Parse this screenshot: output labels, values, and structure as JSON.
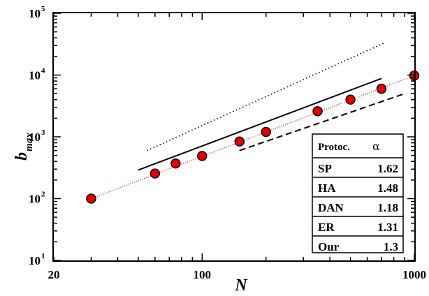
{
  "chart_data": {
    "type": "scatter",
    "xscale": "log",
    "yscale": "log",
    "xlim": [
      20,
      1000
    ],
    "ylim": [
      10,
      100000
    ],
    "xlabel": "N",
    "ylabel": {
      "base": "b",
      "subscript": "max"
    },
    "x_ticks": [
      {
        "value": 20,
        "label": "20"
      },
      {
        "value": 100,
        "label": "100"
      },
      {
        "value": 1000,
        "label": "1000"
      }
    ],
    "y_ticks": [
      {
        "value": 10,
        "base": "10",
        "exp": "1"
      },
      {
        "value": 100,
        "base": "10",
        "exp": "2"
      },
      {
        "value": 1000,
        "base": "10",
        "exp": "3"
      },
      {
        "value": 10000,
        "base": "10",
        "exp": "4"
      },
      {
        "value": 100000,
        "base": "10",
        "exp": "5"
      }
    ],
    "grid": false,
    "points": {
      "marker_color": "#e00000",
      "x": [
        30,
        60,
        75,
        100,
        150,
        200,
        350,
        500,
        700,
        1000
      ],
      "y": [
        100,
        255,
        370,
        490,
        840,
        1200,
        2600,
        4000,
        6000,
        9800
      ]
    },
    "reference_lines": [
      {
        "style": "dotted-red",
        "color": "#e00000",
        "x": [
          30,
          1000
        ],
        "y": [
          100,
          9800
        ]
      },
      {
        "style": "solid",
        "color": "#000000",
        "x": [
          50,
          700
        ],
        "y": [
          290,
          8800
        ]
      },
      {
        "style": "dashed",
        "color": "#000000",
        "x": [
          150,
          900
        ],
        "y": [
          600,
          5000
        ]
      },
      {
        "style": "dotted",
        "color": "#000000",
        "x": [
          55,
          720
        ],
        "y": [
          600,
          33000
        ]
      }
    ],
    "table": {
      "headers": [
        "Protoc.",
        "α"
      ],
      "rows": [
        {
          "protocol": "SP",
          "alpha": "1.62"
        },
        {
          "protocol": "HA",
          "alpha": "1.48"
        },
        {
          "protocol": "DAN",
          "alpha": "1.18"
        },
        {
          "protocol": "ER",
          "alpha": "1.31"
        },
        {
          "protocol": "Our",
          "alpha": "1.3"
        }
      ]
    }
  }
}
